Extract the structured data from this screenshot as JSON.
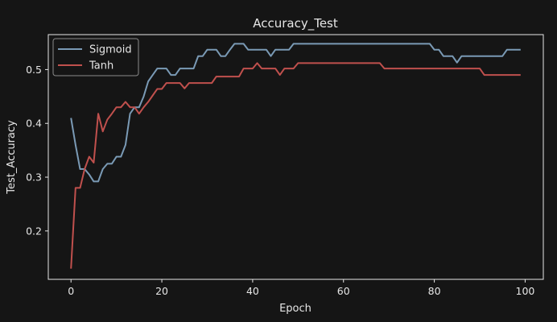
{
  "chart_data": {
    "type": "line",
    "title": "Accuracy_Test",
    "xlabel": "Epoch",
    "ylabel": "Test_Accuracy",
    "xlim": [
      -5,
      104
    ],
    "ylim": [
      0.11,
      0.565
    ],
    "xticks": [
      0,
      20,
      40,
      60,
      80,
      100
    ],
    "yticks": [
      0.2,
      0.3,
      0.4,
      0.5
    ],
    "xtick_labels": [
      "0",
      "20",
      "40",
      "60",
      "80",
      "100"
    ],
    "ytick_labels": [
      "0.2",
      "0.3",
      "0.4",
      "0.5"
    ],
    "grid": false,
    "legend_position": "top-left",
    "series": [
      {
        "name": "Sigmoid",
        "color": "#7a9ab5",
        "values": [
          0.41,
          0.36,
          0.315,
          0.315,
          0.305,
          0.292,
          0.292,
          0.315,
          0.325,
          0.325,
          0.338,
          0.338,
          0.36,
          0.418,
          0.43,
          0.43,
          0.45,
          0.478,
          0.49,
          0.502,
          0.502,
          0.502,
          0.49,
          0.49,
          0.502,
          0.502,
          0.502,
          0.502,
          0.525,
          0.525,
          0.537,
          0.537,
          0.537,
          0.525,
          0.525,
          0.537,
          0.548,
          0.548,
          0.548,
          0.537,
          0.537,
          0.537,
          0.537,
          0.537,
          0.525,
          0.537,
          0.537,
          0.537,
          0.537,
          0.548,
          0.548,
          0.548,
          0.548,
          0.548,
          0.548,
          0.548,
          0.548,
          0.548,
          0.548,
          0.548,
          0.548,
          0.548,
          0.548,
          0.548,
          0.548,
          0.548,
          0.548,
          0.548,
          0.548,
          0.548,
          0.548,
          0.548,
          0.548,
          0.548,
          0.548,
          0.548,
          0.548,
          0.548,
          0.548,
          0.548,
          0.537,
          0.537,
          0.525,
          0.525,
          0.525,
          0.513,
          0.525,
          0.525,
          0.525,
          0.525,
          0.525,
          0.525,
          0.525,
          0.525,
          0.525,
          0.525,
          0.537,
          0.537,
          0.537,
          0.537
        ]
      },
      {
        "name": "Tanh",
        "color": "#c0504d",
        "values": [
          0.13,
          0.28,
          0.28,
          0.315,
          0.338,
          0.327,
          0.418,
          0.385,
          0.407,
          0.418,
          0.43,
          0.43,
          0.44,
          0.43,
          0.43,
          0.418,
          0.43,
          0.44,
          0.452,
          0.464,
          0.464,
          0.475,
          0.475,
          0.475,
          0.475,
          0.465,
          0.475,
          0.475,
          0.475,
          0.475,
          0.475,
          0.475,
          0.487,
          0.487,
          0.487,
          0.487,
          0.487,
          0.487,
          0.502,
          0.502,
          0.502,
          0.512,
          0.502,
          0.502,
          0.502,
          0.502,
          0.49,
          0.502,
          0.502,
          0.502,
          0.512,
          0.512,
          0.512,
          0.512,
          0.512,
          0.512,
          0.512,
          0.512,
          0.512,
          0.512,
          0.512,
          0.512,
          0.512,
          0.512,
          0.512,
          0.512,
          0.512,
          0.512,
          0.512,
          0.502,
          0.502,
          0.502,
          0.502,
          0.502,
          0.502,
          0.502,
          0.502,
          0.502,
          0.502,
          0.502,
          0.502,
          0.502,
          0.502,
          0.502,
          0.502,
          0.502,
          0.502,
          0.502,
          0.502,
          0.502,
          0.502,
          0.49,
          0.49,
          0.49,
          0.49,
          0.49,
          0.49,
          0.49,
          0.49,
          0.49
        ]
      }
    ]
  },
  "style": {
    "background": "#151515",
    "axis_color": "#e6e6e6",
    "text_color": "#e6e6e6",
    "legend_border": "#8a8a8a"
  }
}
